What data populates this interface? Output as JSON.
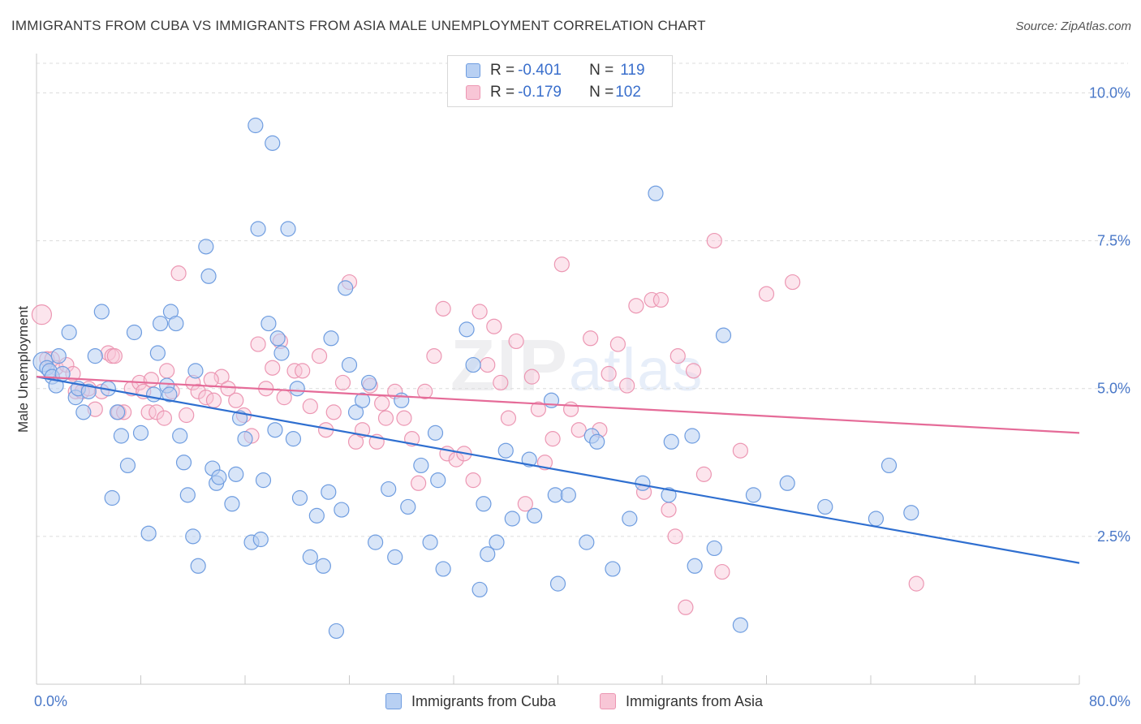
{
  "title": "IMMIGRANTS FROM CUBA VS IMMIGRANTS FROM ASIA MALE UNEMPLOYMENT CORRELATION CHART",
  "source": "Source: ZipAtlas.com",
  "watermark": {
    "zip": "ZIP",
    "atlas": "atlas"
  },
  "legend": {
    "cuba": {
      "r_label": "R = ",
      "r_value": "-0.401",
      "n_label": "N = ",
      "n_value": "119"
    },
    "asia": {
      "r_label": "R = ",
      "r_value": "-0.179",
      "n_label": "N = ",
      "n_value": "102"
    }
  },
  "colors": {
    "cuba_fill": "#b8d0f3",
    "cuba_stroke": "#6f9de0",
    "cuba_line": "#2f6fd0",
    "asia_fill": "#f8c6d6",
    "asia_stroke": "#ec97b3",
    "asia_line": "#e56b98"
  },
  "chart_data": {
    "type": "scatter",
    "title": "IMMIGRANTS FROM CUBA VS IMMIGRANTS FROM ASIA MALE UNEMPLOYMENT CORRELATION CHART",
    "xlabel": "",
    "ylabel": "Male Unemployment",
    "xlim": [
      0,
      80
    ],
    "ylim": [
      0,
      10.5
    ],
    "x_tick_labels": [
      "0.0%",
      "80.0%"
    ],
    "y_ticks": [
      2.5,
      5.0,
      7.5,
      10.0
    ],
    "y_tick_labels": [
      "2.5%",
      "5.0%",
      "7.5%",
      "10.0%"
    ],
    "legend_position": "top-center",
    "series": [
      {
        "name": "Immigrants from Cuba",
        "trend": {
          "x0": 0,
          "y0": 5.2,
          "x1": 80,
          "y1": 2.05
        },
        "points": [
          [
            0.5,
            5.45
          ],
          [
            0.8,
            5.35
          ],
          [
            1.0,
            5.3
          ],
          [
            1.2,
            5.2
          ],
          [
            1.5,
            5.05
          ],
          [
            1.7,
            5.55
          ],
          [
            2.0,
            5.25
          ],
          [
            2.5,
            5.95
          ],
          [
            3.0,
            4.85
          ],
          [
            3.2,
            5.0
          ],
          [
            3.6,
            4.6
          ],
          [
            4.0,
            4.95
          ],
          [
            4.5,
            5.55
          ],
          [
            5.0,
            6.3
          ],
          [
            5.5,
            5.0
          ],
          [
            5.8,
            3.15
          ],
          [
            6.2,
            4.6
          ],
          [
            6.5,
            4.2
          ],
          [
            7.0,
            3.7
          ],
          [
            7.5,
            5.95
          ],
          [
            8.0,
            4.25
          ],
          [
            8.6,
            2.55
          ],
          [
            9.0,
            4.9
          ],
          [
            9.3,
            5.6
          ],
          [
            9.5,
            6.1
          ],
          [
            10.0,
            5.05
          ],
          [
            10.2,
            4.9
          ],
          [
            10.3,
            6.3
          ],
          [
            10.7,
            6.1
          ],
          [
            11.0,
            4.2
          ],
          [
            11.3,
            3.75
          ],
          [
            11.6,
            3.2
          ],
          [
            12.0,
            2.5
          ],
          [
            12.2,
            5.3
          ],
          [
            12.4,
            2.0
          ],
          [
            13.0,
            7.4
          ],
          [
            13.2,
            6.9
          ],
          [
            13.5,
            3.65
          ],
          [
            13.8,
            3.4
          ],
          [
            14.0,
            3.5
          ],
          [
            15.0,
            3.05
          ],
          [
            15.3,
            3.55
          ],
          [
            15.6,
            4.5
          ],
          [
            16.0,
            4.15
          ],
          [
            16.5,
            2.4
          ],
          [
            16.8,
            9.45
          ],
          [
            17.0,
            7.7
          ],
          [
            17.2,
            2.45
          ],
          [
            17.4,
            3.45
          ],
          [
            17.8,
            6.1
          ],
          [
            18.1,
            9.15
          ],
          [
            18.3,
            4.3
          ],
          [
            18.5,
            5.85
          ],
          [
            18.8,
            5.6
          ],
          [
            19.3,
            7.7
          ],
          [
            19.7,
            4.15
          ],
          [
            20.0,
            5.0
          ],
          [
            20.2,
            3.15
          ],
          [
            21.0,
            2.15
          ],
          [
            21.5,
            2.85
          ],
          [
            22.0,
            2.0
          ],
          [
            22.4,
            3.25
          ],
          [
            22.6,
            5.85
          ],
          [
            23.0,
            0.9
          ],
          [
            23.4,
            2.95
          ],
          [
            23.7,
            6.7
          ],
          [
            24.0,
            5.4
          ],
          [
            24.5,
            4.6
          ],
          [
            25.0,
            4.8
          ],
          [
            25.5,
            5.1
          ],
          [
            26.0,
            2.4
          ],
          [
            27.0,
            3.3
          ],
          [
            27.5,
            2.15
          ],
          [
            28.0,
            4.8
          ],
          [
            28.5,
            3.0
          ],
          [
            29.5,
            3.7
          ],
          [
            30.2,
            2.4
          ],
          [
            30.6,
            4.25
          ],
          [
            30.8,
            3.45
          ],
          [
            31.2,
            1.95
          ],
          [
            33.0,
            6.0
          ],
          [
            33.5,
            5.4
          ],
          [
            34.0,
            1.6
          ],
          [
            34.3,
            3.05
          ],
          [
            34.6,
            2.2
          ],
          [
            35.3,
            2.4
          ],
          [
            36.0,
            3.95
          ],
          [
            36.5,
            2.8
          ],
          [
            37.8,
            3.8
          ],
          [
            38.2,
            2.85
          ],
          [
            39.5,
            4.8
          ],
          [
            39.8,
            3.2
          ],
          [
            40.0,
            1.7
          ],
          [
            40.8,
            3.2
          ],
          [
            42.2,
            2.4
          ],
          [
            42.6,
            4.2
          ],
          [
            43.0,
            4.1
          ],
          [
            44.2,
            1.95
          ],
          [
            45.5,
            2.8
          ],
          [
            46.5,
            3.4
          ],
          [
            47.5,
            8.3
          ],
          [
            48.5,
            3.2
          ],
          [
            48.7,
            4.1
          ],
          [
            50.3,
            4.2
          ],
          [
            50.5,
            2.0
          ],
          [
            52.0,
            2.3
          ],
          [
            52.7,
            5.9
          ],
          [
            54.0,
            1.0
          ],
          [
            55.0,
            3.2
          ],
          [
            57.6,
            3.4
          ],
          [
            60.5,
            3.0
          ],
          [
            64.4,
            2.8
          ],
          [
            65.4,
            3.7
          ],
          [
            67.1,
            2.9
          ]
        ]
      },
      {
        "name": "Immigrants from Asia",
        "trend": {
          "x0": 0,
          "y0": 5.2,
          "x1": 80,
          "y1": 4.25
        },
        "points": [
          [
            0.4,
            6.25
          ],
          [
            0.8,
            5.5
          ],
          [
            1.5,
            5.35
          ],
          [
            2.3,
            5.4
          ],
          [
            3.0,
            4.95
          ],
          [
            3.5,
            4.95
          ],
          [
            4.0,
            5.0
          ],
          [
            4.5,
            4.65
          ],
          [
            5.0,
            4.95
          ],
          [
            5.5,
            5.6
          ],
          [
            5.8,
            5.55
          ],
          [
            6.3,
            4.6
          ],
          [
            6.7,
            4.6
          ],
          [
            7.3,
            5.0
          ],
          [
            7.9,
            5.1
          ],
          [
            8.2,
            4.95
          ],
          [
            8.6,
            4.6
          ],
          [
            9.2,
            4.6
          ],
          [
            9.8,
            4.5
          ],
          [
            10.0,
            5.3
          ],
          [
            10.4,
            4.95
          ],
          [
            10.9,
            6.95
          ],
          [
            11.5,
            4.55
          ],
          [
            12.0,
            5.1
          ],
          [
            12.4,
            4.95
          ],
          [
            13.0,
            4.85
          ],
          [
            13.6,
            4.8
          ],
          [
            14.2,
            5.2
          ],
          [
            14.7,
            5.0
          ],
          [
            15.3,
            4.8
          ],
          [
            15.9,
            4.55
          ],
          [
            16.5,
            4.2
          ],
          [
            17.0,
            5.75
          ],
          [
            17.6,
            5.0
          ],
          [
            18.1,
            5.35
          ],
          [
            18.7,
            5.8
          ],
          [
            19.0,
            4.85
          ],
          [
            19.8,
            5.3
          ],
          [
            20.4,
            5.3
          ],
          [
            21.0,
            4.7
          ],
          [
            21.7,
            5.55
          ],
          [
            22.2,
            4.3
          ],
          [
            22.8,
            4.6
          ],
          [
            23.5,
            5.1
          ],
          [
            24.0,
            6.8
          ],
          [
            24.5,
            4.1
          ],
          [
            25.0,
            4.3
          ],
          [
            25.6,
            5.05
          ],
          [
            26.1,
            4.1
          ],
          [
            26.8,
            4.5
          ],
          [
            27.5,
            4.95
          ],
          [
            28.2,
            4.5
          ],
          [
            28.8,
            4.15
          ],
          [
            29.3,
            3.4
          ],
          [
            29.8,
            4.95
          ],
          [
            30.5,
            5.55
          ],
          [
            31.2,
            6.35
          ],
          [
            31.5,
            3.9
          ],
          [
            32.2,
            3.8
          ],
          [
            32.8,
            3.9
          ],
          [
            33.5,
            3.45
          ],
          [
            34.0,
            6.3
          ],
          [
            34.6,
            5.4
          ],
          [
            35.1,
            6.05
          ],
          [
            35.6,
            5.1
          ],
          [
            36.2,
            4.5
          ],
          [
            36.8,
            5.8
          ],
          [
            37.5,
            3.05
          ],
          [
            38.0,
            5.2
          ],
          [
            38.5,
            4.65
          ],
          [
            39.0,
            3.75
          ],
          [
            39.6,
            4.15
          ],
          [
            40.3,
            7.1
          ],
          [
            41.0,
            4.65
          ],
          [
            41.6,
            4.3
          ],
          [
            42.5,
            5.85
          ],
          [
            43.2,
            4.3
          ],
          [
            43.9,
            5.25
          ],
          [
            44.6,
            5.75
          ],
          [
            45.3,
            5.05
          ],
          [
            46.0,
            6.4
          ],
          [
            46.6,
            3.25
          ],
          [
            47.2,
            6.5
          ],
          [
            47.9,
            6.5
          ],
          [
            48.5,
            2.95
          ],
          [
            49.0,
            2.5
          ],
          [
            49.2,
            5.55
          ],
          [
            49.8,
            1.3
          ],
          [
            50.4,
            5.3
          ],
          [
            51.2,
            3.55
          ],
          [
            52.0,
            7.5
          ],
          [
            52.6,
            1.9
          ],
          [
            54.0,
            3.95
          ],
          [
            56.0,
            6.6
          ],
          [
            58.0,
            6.8
          ],
          [
            67.5,
            1.7
          ],
          [
            1.2,
            5.5
          ],
          [
            2.8,
            5.25
          ],
          [
            6.0,
            5.55
          ],
          [
            8.8,
            5.15
          ],
          [
            13.4,
            5.15
          ],
          [
            26.5,
            4.75
          ]
        ]
      }
    ]
  },
  "bottom_legend": {
    "cuba": "Immigrants from Cuba",
    "asia": "Immigrants from Asia"
  }
}
